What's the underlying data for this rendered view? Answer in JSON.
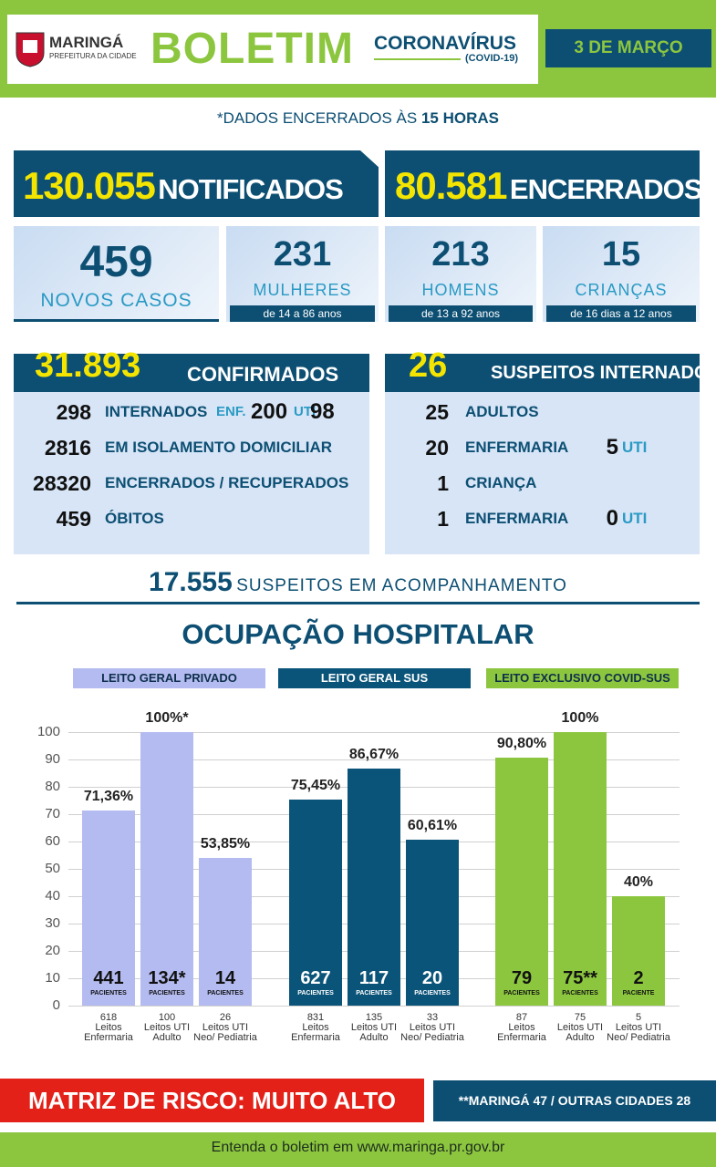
{
  "header": {
    "city": "MARINGÁ",
    "city_sub": "PREFEITURA DA CIDADE",
    "title": "BOLETIM",
    "topic": "CORONAVÍRUS",
    "topic_sub": "(COVID-19)",
    "date": "3 DE MARÇO"
  },
  "note": {
    "text": "*DADOS ENCERRADOS ÀS",
    "time": "15 HORAS"
  },
  "totals": [
    {
      "value": "130.055",
      "label": "NOTIFICADOS"
    },
    {
      "value": "80.581",
      "label": "ENCERRADOS"
    }
  ],
  "cases": [
    {
      "value": "459",
      "label": "NOVOS CASOS"
    },
    {
      "value": "231",
      "label": "MULHERES",
      "range": "de 14 a 86 anos"
    },
    {
      "value": "213",
      "label": "HOMENS",
      "range": "de 13 a 92 anos"
    },
    {
      "value": "15",
      "label": "CRIANÇAS",
      "range": "de 16 dias a 12 anos"
    }
  ],
  "confirmed": {
    "value": "31.893",
    "label": "CONFIRMADOS",
    "rows": [
      [
        "298",
        "INTERNADOS",
        "ENF.",
        "200",
        "UTI",
        "98"
      ],
      [
        "2816",
        "EM ISOLAMENTO DOMICILIAR"
      ],
      [
        "28320",
        "ENCERRADOS / RECUPERADOS"
      ],
      [
        "459",
        "ÓBITOS"
      ]
    ]
  },
  "suspects": {
    "value": "26",
    "label": "SUSPEITOS INTERNADOS",
    "rows": [
      [
        "25",
        "ADULTOS"
      ],
      [
        "20",
        "ENFERMARIA",
        "5",
        "UTI"
      ],
      [
        "1",
        "CRIANÇA"
      ],
      [
        "1",
        "ENFERMARIA",
        "0",
        "UTI"
      ]
    ]
  },
  "monitoring": {
    "value": "17.555",
    "label": "SUSPEITOS EM ACOMPANHAMENTO"
  },
  "section_title": "OCUPAÇÃO HOSPITALAR",
  "chart_data": {
    "type": "bar",
    "ylim": [
      0,
      100
    ],
    "yticks": [
      0,
      10,
      20,
      30,
      40,
      50,
      60,
      70,
      80,
      90,
      100
    ],
    "grid": true,
    "panels": [
      {
        "title": "LEITO GERAL PRIVADO",
        "color": "#b4bbf0",
        "categories": [
          "Leitos Enfermaria",
          "Leitos UTI Adulto",
          "Leitos UTI Neo/ Pediatria"
        ],
        "beds": [
          "618",
          "100",
          "26"
        ],
        "values": [
          71.36,
          100,
          53.85
        ],
        "value_labels": [
          "71,36%",
          "100%*",
          "53,85%"
        ],
        "patients": [
          "441",
          "134*",
          "14"
        ],
        "patient_units": [
          "PACIENTES",
          "PACIENTES",
          "PACIENTES"
        ]
      },
      {
        "title": "LEITO GERAL SUS",
        "color": "#0b5479",
        "categories": [
          "Leitos Enfermaria",
          "Leitos UTI Adulto",
          "Leitos UTI Neo/ Pediatria"
        ],
        "beds": [
          "831",
          "135",
          "33"
        ],
        "values": [
          75.45,
          86.67,
          60.61
        ],
        "value_labels": [
          "75,45%",
          "86,67%",
          "60,61%"
        ],
        "patients": [
          "627",
          "117",
          "20"
        ],
        "patient_units": [
          "PACIENTES",
          "PACIENTES",
          "PACIENTES"
        ]
      },
      {
        "title": "LEITO EXCLUSIVO COVID-SUS",
        "color": "#8cc63f",
        "categories": [
          "Leitos Enfermaria",
          "Leitos UTI Adulto",
          "Leitos UTI Neo/ Pediatria"
        ],
        "beds": [
          "87",
          "75",
          "5"
        ],
        "values": [
          90.8,
          100,
          40
        ],
        "value_labels": [
          "90,80%",
          "100%",
          "40%"
        ],
        "patients": [
          "79",
          "75**",
          "2"
        ],
        "patient_units": [
          "PACIENTES",
          "PACIENTES",
          "PACIENTE"
        ]
      }
    ]
  },
  "footer": {
    "risk": "MATRIZ DE RISCO: MUITO ALTO",
    "note": "**MARINGÁ 47 / OUTRAS CIDADES 28",
    "link": "Entenda o boletim em www.maringa.pr.gov.br"
  }
}
